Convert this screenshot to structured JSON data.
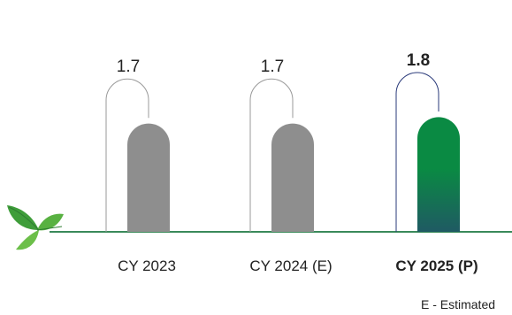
{
  "chart_data": {
    "type": "bar",
    "categories": [
      "CY 2023",
      "CY 2024 (E)",
      "CY 2025 (P)"
    ],
    "values": [
      1.7,
      1.7,
      1.8
    ],
    "value_labels": [
      "1.7",
      "1.7",
      "1.8"
    ],
    "highlight_index": 2,
    "ylim": [
      0,
      2.2
    ],
    "grid": false,
    "legend": "none",
    "footnote": "E - Estimated",
    "colors": {
      "bar": "#8e8e8e",
      "highlight_top": "#0a8a43",
      "highlight_bottom": "#1f5a63",
      "outline": "#9a9a9a",
      "highlight_outline": "#2a3a7a",
      "axis": "#3a8a5a",
      "leaf": "#4caf50"
    },
    "icons": [
      "leaf-icon"
    ]
  }
}
